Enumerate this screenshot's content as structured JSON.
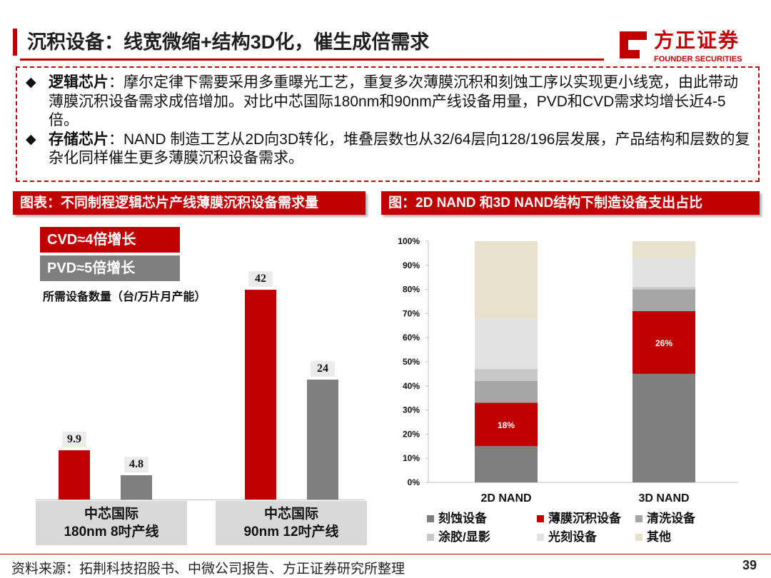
{
  "header": {
    "title": "沉积设备：线宽微缩+结构3D化，催生成倍需求",
    "logo_cn": "方正证券",
    "logo_en": "FOUNDER SECURITIES"
  },
  "bullets": [
    {
      "marker": "◆",
      "label": "逻辑芯片",
      "text": "：摩尔定律下需要采用多重曝光工艺，重复多次薄膜沉积和刻蚀工序以实现更小线宽，由此带动薄膜沉积设备需求成倍增加。对比中芯国际180nm和90nm产线设备用量，PVD和CVD需求均增长近4-5倍。"
    },
    {
      "marker": "◆",
      "label": "存储芯片",
      "text": "：NAND  制造工艺从2D向3D转化，堆叠层数也从32/64层向128/196层发展，产品结构和层数的复杂化同样催生更多薄膜沉积设备需求。"
    }
  ],
  "left_panel": {
    "heading": "图表：不同制程逻辑芯片产线薄膜沉积设备需求量",
    "tag_cvd": "CVD≈4倍增长",
    "tag_pvd": "PVD≈5倍增长",
    "y_title": "所需设备数量（台/万片月产能）",
    "colors": {
      "cvd": "#c00000",
      "pvd": "#7f7f7f"
    }
  },
  "right_panel": {
    "heading": "图：2D NAND 和3D NAND结构下制造设备支出占比"
  },
  "chart_data": [
    {
      "type": "bar",
      "title": "不同制程逻辑芯片产线薄膜沉积设备需求量",
      "ylabel": "所需设备数量（台/万片月产能）",
      "categories": [
        "中芯国际\n180nm 8吋产线",
        "中芯国际\n90nm 12吋产线"
      ],
      "category_lines": [
        [
          "中芯国际",
          "180nm 8吋产线"
        ],
        [
          "中芯国际",
          "90nm 12吋产线"
        ]
      ],
      "series": [
        {
          "name": "CVD",
          "values": [
            9.9,
            42
          ],
          "labels": [
            "9.9",
            "42"
          ],
          "color": "#c00000"
        },
        {
          "name": "PVD",
          "values": [
            4.8,
            24
          ],
          "labels": [
            "4.8",
            "24"
          ],
          "color": "#7f7f7f"
        }
      ],
      "ylim": [
        0,
        48
      ],
      "grid": false
    },
    {
      "type": "bar",
      "stacked": true,
      "title": "2D NAND 和3D NAND结构下制造设备支出占比",
      "categories": [
        "2D NAND",
        "3D NAND"
      ],
      "y_ticks": [
        "0%",
        "10%",
        "20%",
        "30%",
        "40%",
        "50%",
        "60%",
        "70%",
        "80%",
        "90%",
        "100%"
      ],
      "ylim": [
        0,
        100
      ],
      "series": [
        {
          "name": "刻蚀设备",
          "values": [
            15,
            45
          ],
          "color": "#7f7f7f"
        },
        {
          "name": "薄膜沉积设备",
          "values": [
            18,
            26
          ],
          "color": "#c00000",
          "labels": [
            "18%",
            "26%"
          ]
        },
        {
          "name": "清洗设备",
          "values": [
            9,
            9
          ],
          "color": "#a6a6a6"
        },
        {
          "name": "涂胶/显影",
          "values": [
            5,
            1
          ],
          "color": "#c8c8c8"
        },
        {
          "name": "光刻设备",
          "values": [
            21,
            12
          ],
          "color": "#e2e2e2"
        },
        {
          "name": "其他",
          "values": [
            32,
            7
          ],
          "color": "#e8e1cd"
        }
      ],
      "legend_position": "bottom",
      "grid": false
    }
  ],
  "footer": {
    "source": "资料来源：拓荆科技招股书、中微公司报告、方正证券研究所整理",
    "page": "39"
  }
}
